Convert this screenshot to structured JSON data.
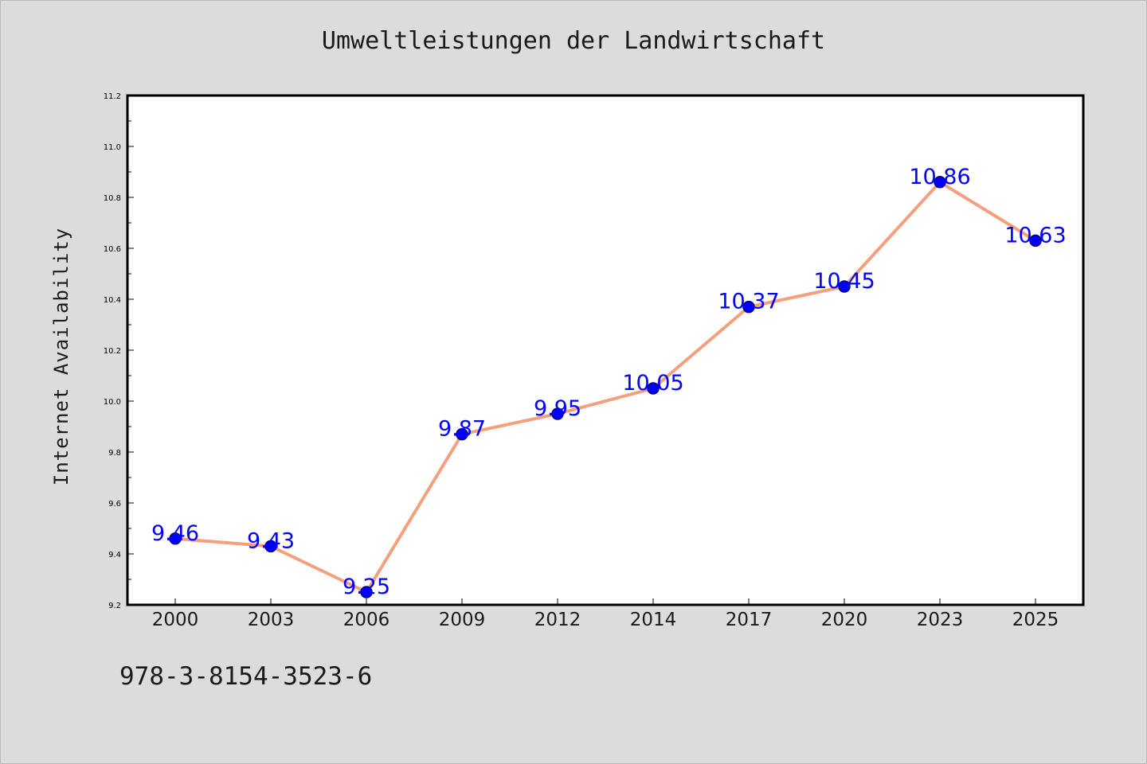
{
  "chart_data": {
    "type": "line",
    "title": "Umweltleistungen der Landwirtschaft",
    "xlabel": "",
    "ylabel": "Internet Availability",
    "categories": [
      "2000",
      "2003",
      "2006",
      "2009",
      "2012",
      "2014",
      "2017",
      "2020",
      "2023",
      "2025"
    ],
    "series": [
      {
        "values": [
          9.46,
          9.43,
          9.25,
          9.87,
          9.95,
          10.05,
          10.37,
          10.45,
          10.86,
          10.63
        ],
        "data_labels": [
          "9.46",
          "9.43",
          "9.25",
          "9.87",
          "9.95",
          "10.05",
          "10.37",
          "10.45",
          "10.86",
          "10.63"
        ]
      }
    ],
    "ylim": [
      9.2,
      11.2
    ],
    "yticks": [
      "9.2",
      "9.4",
      "9.6",
      "9.8",
      "10.0",
      "10.2",
      "10.4",
      "10.6",
      "10.8",
      "11.0",
      "11.2"
    ],
    "grid": false,
    "colors": {
      "line": "#f4a07e",
      "marker": "#0000ff",
      "marker_edge": "#000080",
      "data_label": "#0000ff"
    }
  },
  "footer": {
    "isbn": "978-3-8154-3523-6"
  }
}
